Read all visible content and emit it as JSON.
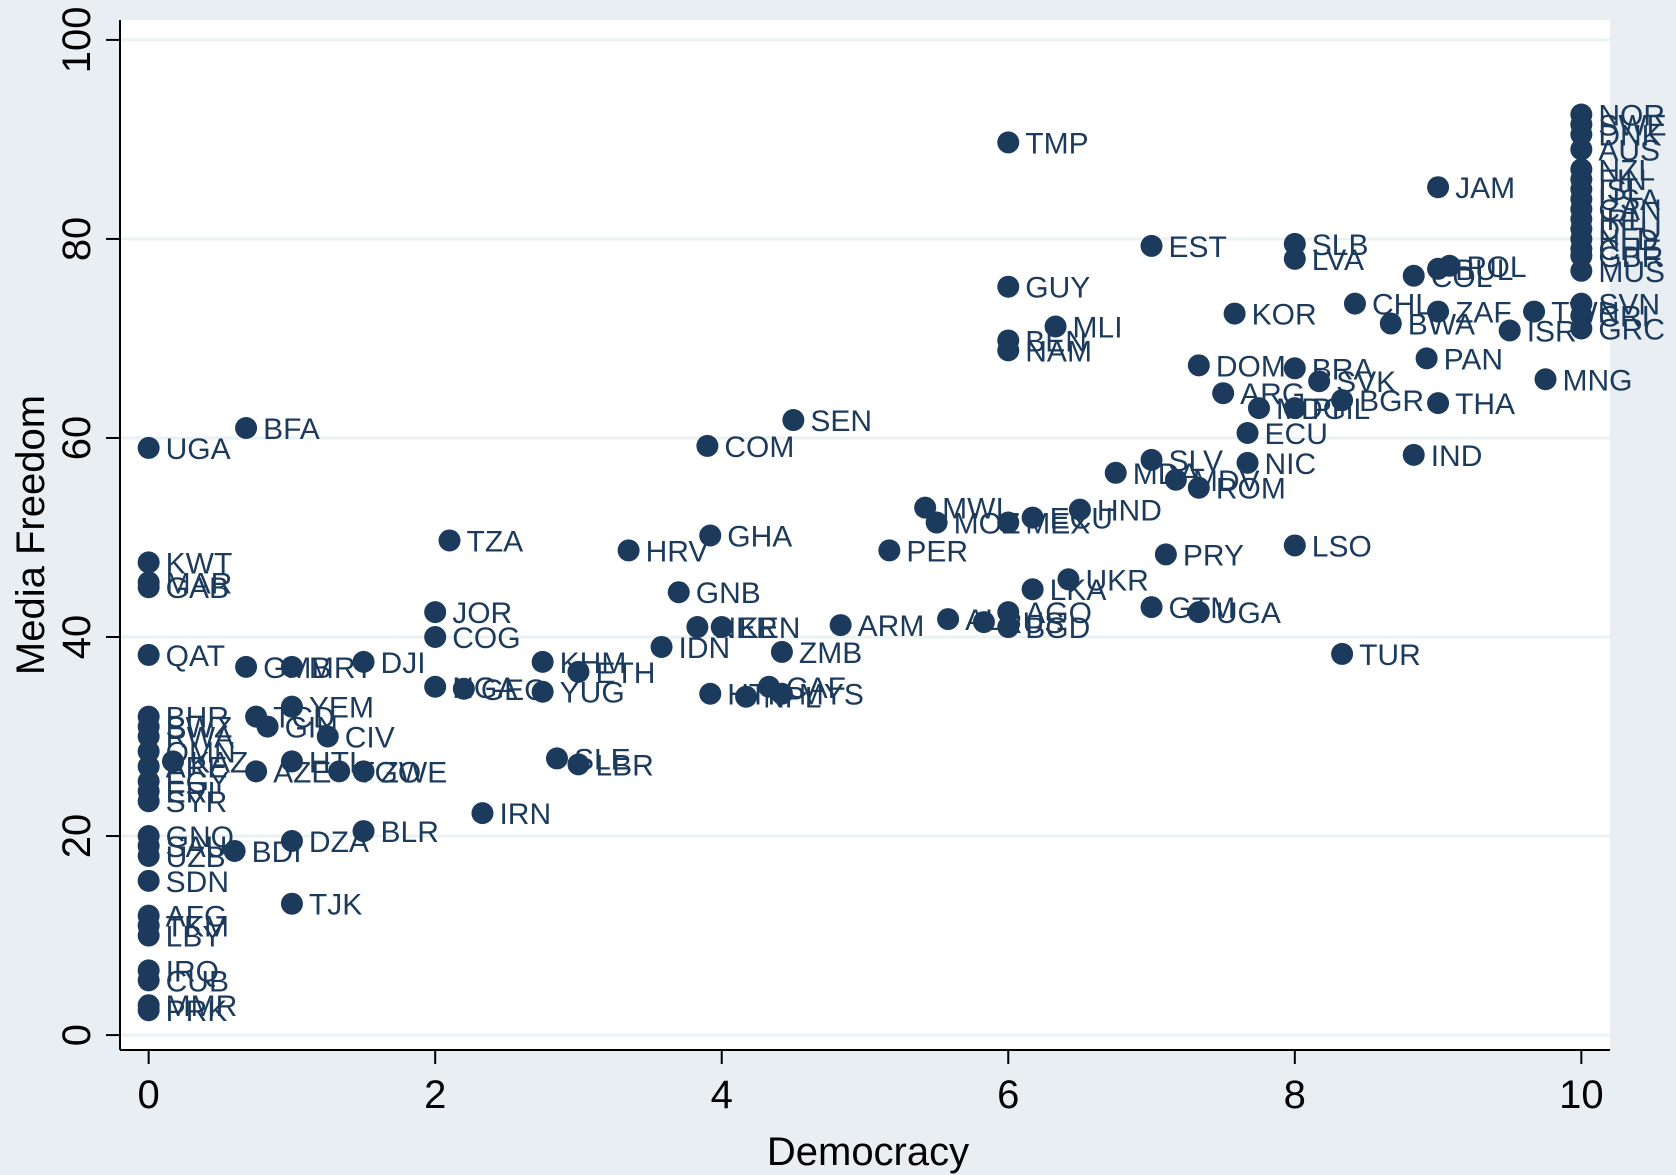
{
  "chart_data": {
    "type": "scatter",
    "title": "",
    "xlabel": "Democracy",
    "ylabel": "Media Freedom",
    "xlim": [
      -0.2,
      10.2
    ],
    "ylim": [
      -1.5,
      102
    ],
    "xticks": [
      0,
      2,
      4,
      6,
      8,
      10
    ],
    "yticks": [
      0,
      20,
      40,
      60,
      80,
      100
    ],
    "xtick_labels": [
      "0",
      "2",
      "4",
      "6",
      "8",
      "10"
    ],
    "ytick_labels": [
      "0",
      "20",
      "40",
      "60",
      "80",
      "100"
    ],
    "grid": "horizontal",
    "legend": "none",
    "colors": {
      "background": "#e8eef2",
      "plot_background": "#ffffff",
      "grid": "#eaf2f3",
      "marker": "#1b3a5c",
      "axis": "#000000"
    },
    "points": [
      {
        "label": "UGA",
        "x": 0,
        "y": 59
      },
      {
        "label": "KWT",
        "x": 0,
        "y": 47.5
      },
      {
        "label": "MAR",
        "x": 0,
        "y": 45.5
      },
      {
        "label": "GAB",
        "x": 0,
        "y": 45
      },
      {
        "label": "QAT",
        "x": 0,
        "y": 38.2
      },
      {
        "label": "BHR",
        "x": 0,
        "y": 32
      },
      {
        "label": "SWZ",
        "x": 0,
        "y": 31
      },
      {
        "label": "RWA",
        "x": 0,
        "y": 30
      },
      {
        "label": "OMN",
        "x": 0,
        "y": 28.5
      },
      {
        "label": "ARE",
        "x": 0,
        "y": 27
      },
      {
        "label": "EGY",
        "x": 0,
        "y": 25.5
      },
      {
        "label": "ERI",
        "x": 0,
        "y": 24.5
      },
      {
        "label": "SYR",
        "x": 0,
        "y": 23.5
      },
      {
        "label": "GNQ",
        "x": 0,
        "y": 20
      },
      {
        "label": "SAU",
        "x": 0,
        "y": 19
      },
      {
        "label": "UZB",
        "x": 0,
        "y": 18
      },
      {
        "label": "SDN",
        "x": 0,
        "y": 15.5
      },
      {
        "label": "AFG",
        "x": 0,
        "y": 12
      },
      {
        "label": "TKM",
        "x": 0,
        "y": 11
      },
      {
        "label": "LBY",
        "x": 0,
        "y": 10
      },
      {
        "label": "IRQ",
        "x": 0,
        "y": 6.5
      },
      {
        "label": "CUB",
        "x": 0,
        "y": 5.5
      },
      {
        "label": "MMR",
        "x": 0,
        "y": 3
      },
      {
        "label": "PRK",
        "x": 0,
        "y": 2.5
      },
      {
        "label": "KAZ",
        "x": 0.17,
        "y": 27.5
      },
      {
        "label": "BDI",
        "x": 0.6,
        "y": 18.5
      },
      {
        "label": "BFA",
        "x": 0.68,
        "y": 61
      },
      {
        "label": "GMB",
        "x": 0.68,
        "y": 37
      },
      {
        "label": "TCD",
        "x": 0.75,
        "y": 32
      },
      {
        "label": "AZE",
        "x": 0.75,
        "y": 26.5
      },
      {
        "label": "GIN",
        "x": 0.83,
        "y": 31
      },
      {
        "label": "MRT",
        "x": 1,
        "y": 37
      },
      {
        "label": "YEM",
        "x": 1,
        "y": 33
      },
      {
        "label": "HTI",
        "x": 1,
        "y": 27.5
      },
      {
        "label": "DZA",
        "x": 1,
        "y": 19.5
      },
      {
        "label": "TJK",
        "x": 1,
        "y": 13.2
      },
      {
        "label": "CIV",
        "x": 1.25,
        "y": 30
      },
      {
        "label": "TGO",
        "x": 1.33,
        "y": 26.5
      },
      {
        "label": "DJI",
        "x": 1.5,
        "y": 37.5
      },
      {
        "label": "ZWE",
        "x": 1.5,
        "y": 26.5
      },
      {
        "label": "BLR",
        "x": 1.5,
        "y": 20.5
      },
      {
        "label": "JOR",
        "x": 2,
        "y": 42.5
      },
      {
        "label": "COG",
        "x": 2,
        "y": 40
      },
      {
        "label": "NGA",
        "x": 2,
        "y": 35
      },
      {
        "label": "TZA",
        "x": 2.1,
        "y": 49.7
      },
      {
        "label": "GEO",
        "x": 2.2,
        "y": 34.8
      },
      {
        "label": "IRN",
        "x": 2.33,
        "y": 22.3
      },
      {
        "label": "KHM",
        "x": 2.75,
        "y": 37.5
      },
      {
        "label": "YUG",
        "x": 2.75,
        "y": 34.5
      },
      {
        "label": "SLE",
        "x": 2.85,
        "y": 27.8
      },
      {
        "label": "ETH",
        "x": 3,
        "y": 36.5
      },
      {
        "label": "LBR",
        "x": 3,
        "y": 27.2
      },
      {
        "label": "HRV",
        "x": 3.35,
        "y": 48.7
      },
      {
        "label": "IDN",
        "x": 3.58,
        "y": 39
      },
      {
        "label": "GNB",
        "x": 3.7,
        "y": 44.5
      },
      {
        "label": "NER",
        "x": 3.83,
        "y": 41
      },
      {
        "label": "COM",
        "x": 3.9,
        "y": 59.2
      },
      {
        "label": "GHA",
        "x": 3.92,
        "y": 50.2
      },
      {
        "label": "HTI",
        "x": 3.92,
        "y": 34.3
      },
      {
        "label": "KEN",
        "x": 4,
        "y": 41
      },
      {
        "label": "NPL",
        "x": 4.17,
        "y": 34
      },
      {
        "label": "ZMB",
        "x": 4.42,
        "y": 38.5
      },
      {
        "label": "CAF",
        "x": 4.33,
        "y": 35
      },
      {
        "label": "MYS",
        "x": 4.42,
        "y": 34.3
      },
      {
        "label": "SEN",
        "x": 4.5,
        "y": 61.8
      },
      {
        "label": "ARM",
        "x": 4.83,
        "y": 41.2
      },
      {
        "label": "PER",
        "x": 5.17,
        "y": 48.7
      },
      {
        "label": "MWI",
        "x": 5.42,
        "y": 53
      },
      {
        "label": "MOZ",
        "x": 5.5,
        "y": 51.5
      },
      {
        "label": "ALB",
        "x": 5.58,
        "y": 41.8
      },
      {
        "label": "RUS",
        "x": 5.83,
        "y": 41.5
      },
      {
        "label": "TMP",
        "x": 6,
        "y": 89.7
      },
      {
        "label": "GUY",
        "x": 6,
        "y": 75.2
      },
      {
        "label": "BEN",
        "x": 6,
        "y": 69.8
      },
      {
        "label": "NAM",
        "x": 6,
        "y": 68.8
      },
      {
        "label": "MEX",
        "x": 6,
        "y": 51.5
      },
      {
        "label": "AGO",
        "x": 6,
        "y": 42.5
      },
      {
        "label": "BGD",
        "x": 6,
        "y": 41
      },
      {
        "label": "ECU",
        "x": 6.17,
        "y": 52
      },
      {
        "label": "LKA",
        "x": 6.17,
        "y": 44.8
      },
      {
        "label": "MLI",
        "x": 6.33,
        "y": 71.2
      },
      {
        "label": "UKR",
        "x": 6.42,
        "y": 45.8
      },
      {
        "label": "HND",
        "x": 6.5,
        "y": 52.8
      },
      {
        "label": "MDA",
        "x": 6.75,
        "y": 56.5
      },
      {
        "label": "EST",
        "x": 7,
        "y": 79.3
      },
      {
        "label": "SLV",
        "x": 7,
        "y": 57.8
      },
      {
        "label": "GTM",
        "x": 7,
        "y": 43
      },
      {
        "label": "PRY",
        "x": 7.1,
        "y": 48.3
      },
      {
        "label": "MDV",
        "x": 7.17,
        "y": 55.8
      },
      {
        "label": "ROM",
        "x": 7.33,
        "y": 55
      },
      {
        "label": "DOM",
        "x": 7.33,
        "y": 67.3
      },
      {
        "label": "UGA",
        "x": 7.33,
        "y": 42.5
      },
      {
        "label": "ARG",
        "x": 7.5,
        "y": 64.5
      },
      {
        "label": "KOR",
        "x": 7.58,
        "y": 72.5
      },
      {
        "label": "NIC",
        "x": 7.67,
        "y": 57.5
      },
      {
        "label": "ECU",
        "x": 7.67,
        "y": 60.5
      },
      {
        "label": "MDG",
        "x": 7.75,
        "y": 63
      },
      {
        "label": "SLB",
        "x": 8,
        "y": 79.5
      },
      {
        "label": "LVA",
        "x": 8,
        "y": 78
      },
      {
        "label": "BRA",
        "x": 8,
        "y": 67
      },
      {
        "label": "PHL",
        "x": 8,
        "y": 63
      },
      {
        "label": "LSO",
        "x": 8,
        "y": 49.2
      },
      {
        "label": "SVK",
        "x": 8.17,
        "y": 65.7
      },
      {
        "label": "BGR",
        "x": 8.33,
        "y": 63.8
      },
      {
        "label": "TUR",
        "x": 8.33,
        "y": 38.3
      },
      {
        "label": "CHL",
        "x": 8.42,
        "y": 73.5
      },
      {
        "label": "BWA",
        "x": 8.67,
        "y": 71.5
      },
      {
        "label": "IND",
        "x": 8.83,
        "y": 58.3
      },
      {
        "label": "COL",
        "x": 8.83,
        "y": 76.3
      },
      {
        "label": "JAM",
        "x": 9,
        "y": 85.2
      },
      {
        "label": "PAN",
        "x": 8.92,
        "y": 68
      },
      {
        "label": "THA",
        "x": 9,
        "y": 63.5
      },
      {
        "label": "ZAF",
        "x": 9,
        "y": 72.7
      },
      {
        "label": "BUL",
        "x": 9,
        "y": 77
      },
      {
        "label": "POL",
        "x": 9.08,
        "y": 77.3
      },
      {
        "label": "ISR",
        "x": 9.5,
        "y": 70.8
      },
      {
        "label": "MNG",
        "x": 9.75,
        "y": 65.9
      },
      {
        "label": "TWN",
        "x": 9.67,
        "y": 72.7
      },
      {
        "label": "NOR",
        "x": 10,
        "y": 92.5
      },
      {
        "label": "SWE",
        "x": 10,
        "y": 91.5
      },
      {
        "label": "DNK",
        "x": 10,
        "y": 90.5
      },
      {
        "label": "AUS",
        "x": 10,
        "y": 89
      },
      {
        "label": "NZL",
        "x": 10,
        "y": 87
      },
      {
        "label": "FIN",
        "x": 10,
        "y": 86
      },
      {
        "label": "ISL",
        "x": 10,
        "y": 85
      },
      {
        "label": "USA",
        "x": 10,
        "y": 84
      },
      {
        "label": "CAN",
        "x": 10,
        "y": 83
      },
      {
        "label": "IRL",
        "x": 10,
        "y": 82
      },
      {
        "label": "DEU",
        "x": 10,
        "y": 81
      },
      {
        "label": "NLD",
        "x": 10,
        "y": 80
      },
      {
        "label": "CHE",
        "x": 10,
        "y": 79
      },
      {
        "label": "GBR",
        "x": 10,
        "y": 78.3
      },
      {
        "label": "MUS",
        "x": 10,
        "y": 76.8
      },
      {
        "label": "SVN",
        "x": 10,
        "y": 73.5
      },
      {
        "label": "CRI",
        "x": 10,
        "y": 72.3
      },
      {
        "label": "GRC",
        "x": 10,
        "y": 71
      }
    ]
  }
}
